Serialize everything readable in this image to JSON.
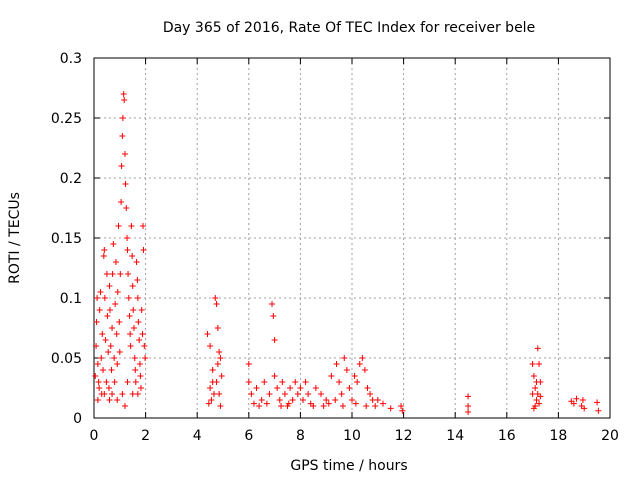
{
  "chart_data": {
    "type": "scatter",
    "title": "Day 365 of 2016, Rate Of TEC Index for receiver bele",
    "xlabel": "GPS time / hours",
    "ylabel": "ROTI / TECUs",
    "xlim": [
      0,
      20
    ],
    "ylim": [
      0,
      0.3
    ],
    "xticks": [
      0,
      2,
      4,
      6,
      8,
      10,
      12,
      14,
      16,
      18,
      20
    ],
    "xtick_labels": [
      "0",
      "2",
      "4",
      "6",
      "8",
      "10",
      "12",
      "14",
      "16",
      "18",
      "20"
    ],
    "yticks": [
      0,
      0.05,
      0.1,
      0.15,
      0.2,
      0.25,
      0.3
    ],
    "ytick_labels": [
      "0",
      "0.05",
      "0.1",
      "0.15",
      "0.2",
      "0.25",
      "0.3"
    ],
    "grid": true,
    "marker": "+",
    "color": "#ff0000",
    "series": [
      {
        "name": "ROTI",
        "points": [
          [
            0.05,
            0.035
          ],
          [
            0.08,
            0.06
          ],
          [
            0.1,
            0.08
          ],
          [
            0.12,
            0.1
          ],
          [
            0.15,
            0.045
          ],
          [
            0.18,
            0.03
          ],
          [
            0.2,
            0.025
          ],
          [
            0.22,
            0.09
          ],
          [
            0.25,
            0.105
          ],
          [
            0.28,
            0.05
          ],
          [
            0.3,
            0.02
          ],
          [
            0.32,
            0.07
          ],
          [
            0.35,
            0.04
          ],
          [
            0.38,
            0.135
          ],
          [
            0.4,
            0.14
          ],
          [
            0.42,
            0.1
          ],
          [
            0.45,
            0.065
          ],
          [
            0.48,
            0.03
          ],
          [
            0.5,
            0.12
          ],
          [
            0.52,
            0.085
          ],
          [
            0.55,
            0.055
          ],
          [
            0.58,
            0.025
          ],
          [
            0.6,
            0.11
          ],
          [
            0.62,
            0.09
          ],
          [
            0.65,
            0.06
          ],
          [
            0.68,
            0.04
          ],
          [
            0.7,
            0.075
          ],
          [
            0.72,
            0.12
          ],
          [
            0.75,
            0.145
          ],
          [
            0.78,
            0.05
          ],
          [
            0.8,
            0.03
          ],
          [
            0.82,
            0.095
          ],
          [
            0.85,
            0.13
          ],
          [
            0.88,
            0.07
          ],
          [
            0.9,
            0.045
          ],
          [
            0.92,
            0.105
          ],
          [
            0.95,
            0.16
          ],
          [
            0.98,
            0.08
          ],
          [
            1.0,
            0.055
          ],
          [
            1.02,
            0.12
          ],
          [
            1.05,
            0.18
          ],
          [
            1.07,
            0.21
          ],
          [
            1.1,
            0.235
          ],
          [
            1.12,
            0.25
          ],
          [
            1.15,
            0.27
          ],
          [
            1.17,
            0.265
          ],
          [
            1.2,
            0.22
          ],
          [
            1.22,
            0.195
          ],
          [
            1.25,
            0.175
          ],
          [
            1.28,
            0.15
          ],
          [
            1.3,
            0.14
          ],
          [
            1.32,
            0.12
          ],
          [
            1.35,
            0.1
          ],
          [
            1.38,
            0.085
          ],
          [
            1.4,
            0.07
          ],
          [
            1.42,
            0.06
          ],
          [
            1.45,
            0.16
          ],
          [
            1.48,
            0.135
          ],
          [
            1.5,
            0.11
          ],
          [
            1.52,
            0.09
          ],
          [
            1.55,
            0.075
          ],
          [
            1.58,
            0.05
          ],
          [
            1.6,
            0.04
          ],
          [
            1.62,
            0.03
          ],
          [
            1.65,
            0.13
          ],
          [
            1.68,
            0.115
          ],
          [
            1.7,
            0.1
          ],
          [
            1.72,
            0.08
          ],
          [
            1.75,
            0.065
          ],
          [
            1.78,
            0.045
          ],
          [
            1.8,
            0.035
          ],
          [
            1.82,
            0.025
          ],
          [
            1.85,
            0.09
          ],
          [
            1.88,
            0.07
          ],
          [
            1.9,
            0.16
          ],
          [
            1.92,
            0.14
          ],
          [
            1.95,
            0.06
          ],
          [
            1.98,
            0.05
          ],
          [
            0.15,
            0.015
          ],
          [
            0.6,
            0.015
          ],
          [
            1.1,
            0.02
          ],
          [
            1.5,
            0.02
          ],
          [
            0.9,
            0.015
          ],
          [
            1.3,
            0.03
          ],
          [
            0.4,
            0.02
          ],
          [
            1.7,
            0.02
          ],
          [
            0.7,
            0.02
          ],
          [
            1.2,
            0.01
          ],
          [
            4.4,
            0.07
          ],
          [
            4.5,
            0.06
          ],
          [
            4.6,
            0.04
          ],
          [
            4.7,
            0.1
          ],
          [
            4.75,
            0.095
          ],
          [
            4.8,
            0.075
          ],
          [
            4.85,
            0.055
          ],
          [
            4.9,
            0.05
          ],
          [
            4.95,
            0.035
          ],
          [
            4.5,
            0.025
          ],
          [
            4.55,
            0.015
          ],
          [
            4.65,
            0.02
          ],
          [
            4.75,
            0.03
          ],
          [
            4.85,
            0.02
          ],
          [
            4.9,
            0.01
          ],
          [
            4.45,
            0.012
          ],
          [
            4.6,
            0.03
          ],
          [
            4.8,
            0.045
          ],
          [
            6.0,
            0.045
          ],
          [
            6.0,
            0.03
          ],
          [
            6.1,
            0.02
          ],
          [
            6.3,
            0.025
          ],
          [
            6.5,
            0.015
          ],
          [
            6.6,
            0.03
          ],
          [
            6.8,
            0.02
          ],
          [
            6.9,
            0.095
          ],
          [
            6.95,
            0.085
          ],
          [
            7.0,
            0.065
          ],
          [
            7.0,
            0.035
          ],
          [
            7.1,
            0.025
          ],
          [
            7.2,
            0.015
          ],
          [
            7.3,
            0.03
          ],
          [
            7.4,
            0.02
          ],
          [
            7.5,
            0.01
          ],
          [
            7.6,
            0.025
          ],
          [
            7.7,
            0.015
          ],
          [
            7.8,
            0.03
          ],
          [
            7.9,
            0.02
          ],
          [
            6.2,
            0.012
          ],
          [
            6.4,
            0.01
          ],
          [
            6.7,
            0.012
          ],
          [
            7.25,
            0.01
          ],
          [
            7.55,
            0.012
          ],
          [
            8.0,
            0.025
          ],
          [
            8.1,
            0.015
          ],
          [
            8.2,
            0.03
          ],
          [
            8.3,
            0.02
          ],
          [
            8.5,
            0.01
          ],
          [
            8.6,
            0.025
          ],
          [
            8.8,
            0.02
          ],
          [
            9.0,
            0.015
          ],
          [
            9.2,
            0.035
          ],
          [
            9.4,
            0.045
          ],
          [
            9.5,
            0.03
          ],
          [
            9.6,
            0.02
          ],
          [
            9.7,
            0.05
          ],
          [
            9.8,
            0.04
          ],
          [
            9.9,
            0.025
          ],
          [
            10.0,
            0.015
          ],
          [
            10.1,
            0.035
          ],
          [
            10.2,
            0.03
          ],
          [
            10.3,
            0.045
          ],
          [
            10.4,
            0.05
          ],
          [
            10.5,
            0.04
          ],
          [
            10.6,
            0.025
          ],
          [
            10.7,
            0.02
          ],
          [
            10.8,
            0.015
          ],
          [
            10.9,
            0.01
          ],
          [
            11.0,
            0.015
          ],
          [
            11.2,
            0.012
          ],
          [
            11.5,
            0.008
          ],
          [
            11.9,
            0.01
          ],
          [
            11.95,
            0.006
          ],
          [
            8.4,
            0.012
          ],
          [
            8.9,
            0.01
          ],
          [
            9.1,
            0.012
          ],
          [
            9.35,
            0.015
          ],
          [
            9.65,
            0.01
          ],
          [
            10.15,
            0.012
          ],
          [
            10.55,
            0.01
          ],
          [
            14.5,
            0.018
          ],
          [
            14.5,
            0.01
          ],
          [
            14.5,
            0.005
          ],
          [
            17.0,
            0.045
          ],
          [
            17.05,
            0.035
          ],
          [
            17.1,
            0.025
          ],
          [
            17.15,
            0.015
          ],
          [
            17.2,
            0.058
          ],
          [
            17.25,
            0.045
          ],
          [
            17.3,
            0.03
          ],
          [
            17.1,
            0.01
          ],
          [
            17.2,
            0.02
          ],
          [
            17.0,
            0.02
          ],
          [
            17.15,
            0.03
          ],
          [
            17.25,
            0.012
          ],
          [
            17.05,
            0.008
          ],
          [
            17.3,
            0.018
          ],
          [
            18.5,
            0.014
          ],
          [
            18.6,
            0.012
          ],
          [
            18.7,
            0.016
          ],
          [
            18.9,
            0.01
          ],
          [
            18.95,
            0.015
          ],
          [
            19.0,
            0.008
          ],
          [
            19.5,
            0.013
          ],
          [
            19.55,
            0.006
          ]
        ]
      }
    ]
  }
}
